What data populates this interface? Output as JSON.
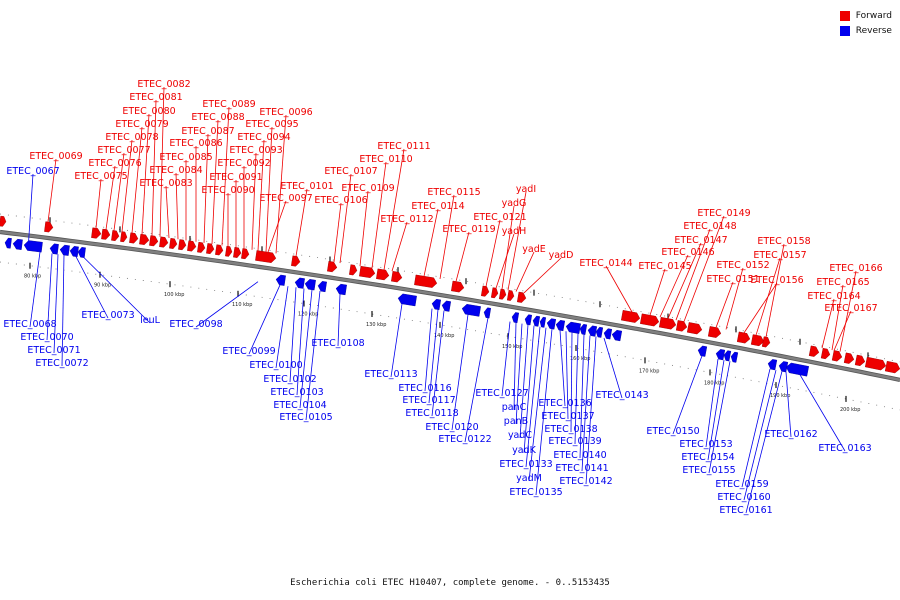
{
  "legend": [
    {
      "label": "Forward",
      "color": "#ee0000"
    },
    {
      "label": "Reverse",
      "color": "#0000ee"
    }
  ],
  "caption": "Escherichia coli ETEC H10407, complete genome. - 0..5153435",
  "colors": {
    "forward": "#ee0000",
    "reverse": "#0000ee",
    "backbone": "#808080"
  },
  "scale_labels": [
    "80 kbp",
    "90 kbp",
    "100 kbp",
    "110 kbp",
    "120 kbp",
    "130 kbp",
    "140 kbp",
    "150 kbp",
    "160 kbp",
    "170 kbp",
    "180 kbp",
    "190 kbp",
    "200 kbp"
  ],
  "forward_genes": [
    "ETEC_0069",
    "ETEC_0075",
    "ETEC_0076",
    "ETEC_0077",
    "ETEC_0078",
    "ETEC_0079",
    "ETEC_0080",
    "ETEC_0081",
    "ETEC_0082",
    "ETEC_0083",
    "ETEC_0084",
    "ETEC_0085",
    "ETEC_0086",
    "ETEC_0087",
    "ETEC_0088",
    "ETEC_0089",
    "ETEC_0090",
    "ETEC_0091",
    "ETEC_0092",
    "ETEC_0093",
    "ETEC_0094",
    "ETEC_0095",
    "ETEC_0096",
    "ETEC_0097",
    "ETEC_0101",
    "ETEC_0106",
    "ETEC_0107",
    "ETEC_0109",
    "ETEC_0110",
    "ETEC_0111",
    "ETEC_0112",
    "ETEC_0114",
    "ETEC_0115",
    "ETEC_0119",
    "ETEC_0121",
    "yadH",
    "yadG",
    "yadI",
    "yadE",
    "yadD",
    "ETEC_0144",
    "ETEC_0145",
    "ETEC_0146",
    "ETEC_0147",
    "ETEC_0148",
    "ETEC_0149",
    "ETEC_0151",
    "ETEC_0152",
    "ETEC_0156",
    "ETEC_0157",
    "ETEC_0158",
    "ETEC_0164",
    "ETEC_0165",
    "ETEC_0166",
    "ETEC_0167"
  ],
  "reverse_genes": [
    "ETEC_0067",
    "ETEC_0068",
    "ETEC_0070",
    "ETEC_0071",
    "ETEC_0072",
    "ETEC_0073",
    "leuL",
    "ETEC_0098",
    "ETEC_0099",
    "ETEC_0100",
    "ETEC_0102",
    "ETEC_0103",
    "ETEC_0104",
    "ETEC_0105",
    "ETEC_0108",
    "ETEC_0113",
    "ETEC_0116",
    "ETEC_0117",
    "ETEC_0118",
    "ETEC_0120",
    "ETEC_0122",
    "ETEC_0127",
    "panC",
    "panB",
    "yadC",
    "yadK",
    "ETEC_0133",
    "yadM",
    "ETEC_0135",
    "ETEC_0136",
    "ETEC_0137",
    "ETEC_0138",
    "ETEC_0139",
    "ETEC_0140",
    "ETEC_0141",
    "ETEC_0142",
    "ETEC_0143",
    "ETEC_0150",
    "ETEC_0153",
    "ETEC_0154",
    "ETEC_0155",
    "ETEC_0159",
    "ETEC_0160",
    "ETEC_0161",
    "ETEC_0162",
    "ETEC_0163"
  ]
}
